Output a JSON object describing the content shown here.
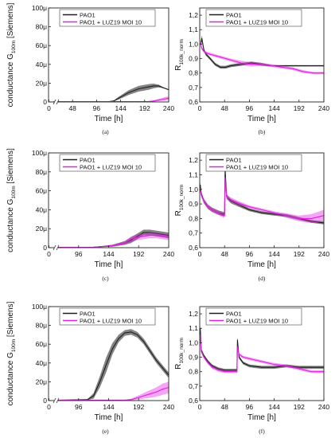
{
  "legend": [
    "PAO1",
    "PAO1 + LUZ19 MOI 10"
  ],
  "chart_data": [
    {
      "panel": "(a)",
      "type": "line",
      "xlabel": "Time [h]",
      "ylabel": "conductance G",
      "ylabel_sub": "100m",
      "ylabel_unit": "[Siemens]",
      "xticks": [
        "0",
        "48",
        "96",
        "144",
        "192",
        "240"
      ],
      "xlim": [
        0,
        240
      ],
      "x_break": true,
      "yticks": [
        "0",
        "20μ",
        "40μ",
        "60μ",
        "80μ",
        "100μ"
      ],
      "ylim": [
        0,
        100
      ],
      "series": [
        {
          "name": "PAO1",
          "color": "#1e1e1e",
          "x": [
            10,
            120,
            130,
            140,
            160,
            180,
            200,
            210,
            220,
            230,
            240
          ],
          "y": [
            0.3,
            0.3,
            1,
            4,
            10,
            14,
            16,
            17,
            17,
            15,
            13
          ],
          "err": [
            0,
            0,
            0.5,
            1.5,
            2.5,
            3,
            3,
            2.5,
            1.5,
            0.5,
            0.3
          ]
        },
        {
          "name": "PAO1 + LUZ19 MOI 10",
          "color": "#e020e0",
          "x": [
            10,
            180,
            200,
            210,
            220,
            230,
            240
          ],
          "y": [
            0.3,
            0.3,
            0.5,
            1,
            2,
            3,
            4
          ],
          "err": [
            0,
            0,
            0.3,
            0.7,
            1.2,
            1.8,
            2
          ]
        }
      ]
    },
    {
      "panel": "(b)",
      "type": "line",
      "xlabel": "Time [h]",
      "ylabel": "R",
      "ylabel_sub": "100k_norm",
      "ylabel_unit": "",
      "xticks": [
        "0",
        "48",
        "96",
        "144",
        "192",
        "240"
      ],
      "xlim": [
        0,
        240
      ],
      "yticks": [
        "0,6",
        "0,7",
        "0,8",
        "0,9",
        "1,0",
        "1,1",
        "1,2"
      ],
      "ylim": [
        0.6,
        1.25
      ],
      "series": [
        {
          "name": "PAO1",
          "color": "#1e1e1e",
          "x": [
            2,
            4,
            8,
            12,
            20,
            30,
            40,
            50,
            60,
            80,
            100,
            120,
            140,
            160,
            200,
            240
          ],
          "y": [
            1.0,
            1.04,
            0.96,
            0.93,
            0.9,
            0.86,
            0.84,
            0.84,
            0.85,
            0.86,
            0.87,
            0.86,
            0.85,
            0.85,
            0.85,
            0.85
          ],
          "err": [
            0.02,
            0.02,
            0.01,
            0.01,
            0.01,
            0.01,
            0.01,
            0.01,
            0.01,
            0.01,
            0.01,
            0.01,
            0.005,
            0.005,
            0.005,
            0.005
          ]
        },
        {
          "name": "PAO1 + LUZ19 MOI 10",
          "color": "#e020e0",
          "x": [
            2,
            4,
            8,
            12,
            20,
            30,
            40,
            60,
            80,
            100,
            120,
            140,
            160,
            180,
            200,
            220,
            240
          ],
          "y": [
            1.0,
            0.97,
            0.95,
            0.94,
            0.93,
            0.92,
            0.91,
            0.89,
            0.87,
            0.86,
            0.86,
            0.85,
            0.84,
            0.83,
            0.81,
            0.8,
            0.8
          ],
          "err": [
            0.02,
            0.01,
            0.01,
            0.01,
            0.01,
            0.01,
            0.01,
            0.01,
            0.015,
            0.015,
            0.01,
            0.01,
            0.01,
            0.01,
            0.01,
            0.008,
            0.008
          ]
        }
      ]
    },
    {
      "panel": "(c)",
      "type": "line",
      "xlabel": "Time [h]",
      "ylabel": "conductance G",
      "ylabel_sub": "100m",
      "ylabel_unit": "[Siemens]",
      "xticks": [
        "0",
        "96",
        "144",
        "192",
        "240"
      ],
      "xlim": [
        48,
        240
      ],
      "x_break": true,
      "yticks": [
        "0",
        "20μ",
        "40μ",
        "60μ",
        "80μ",
        "100μ"
      ],
      "ylim": [
        0,
        100
      ],
      "series": [
        {
          "name": "PAO1",
          "color": "#1e1e1e",
          "x": [
            60,
            120,
            150,
            170,
            180,
            190,
            200,
            210,
            220,
            230,
            240
          ],
          "y": [
            0.3,
            0.5,
            2,
            5,
            8,
            12,
            16,
            16,
            15,
            14,
            13
          ],
          "err": [
            0,
            0.2,
            1,
            2,
            3,
            3,
            3,
            3,
            3,
            3,
            3
          ]
        },
        {
          "name": "PAO1 + LUZ19 MOI 10",
          "color": "#e020e0",
          "x": [
            60,
            120,
            150,
            170,
            180,
            190,
            200,
            210,
            220,
            230,
            240
          ],
          "y": [
            0.3,
            0.5,
            2,
            5,
            9,
            11,
            12,
            13,
            13,
            12,
            11
          ],
          "err": [
            0,
            0.2,
            1,
            2,
            3,
            3,
            3,
            3,
            3,
            3,
            3
          ]
        }
      ]
    },
    {
      "panel": "(d)",
      "type": "line",
      "xlabel": "Time [h]",
      "ylabel": "R",
      "ylabel_sub": "100k_norm",
      "ylabel_unit": "",
      "xticks": [
        "0",
        "48",
        "96",
        "144",
        "192",
        "240"
      ],
      "xlim": [
        0,
        240
      ],
      "yticks": [
        "0,6",
        "0,7",
        "0,8",
        "0,9",
        "1,0",
        "1,1",
        "1,2"
      ],
      "ylim": [
        0.6,
        1.25
      ],
      "series": [
        {
          "name": "PAO1",
          "color": "#1e1e1e",
          "x": [
            1,
            3,
            8,
            16,
            24,
            36,
            46,
            48,
            49,
            52,
            60,
            72,
            96,
            120,
            144,
            168,
            192,
            216,
            240
          ],
          "y": [
            1.03,
            0.97,
            0.92,
            0.88,
            0.86,
            0.84,
            0.83,
            0.83,
            1.14,
            0.95,
            0.92,
            0.9,
            0.86,
            0.84,
            0.83,
            0.82,
            0.8,
            0.78,
            0.77
          ],
          "err": [
            0.02,
            0.015,
            0.015,
            0.015,
            0.015,
            0.015,
            0.015,
            0.015,
            0.02,
            0.015,
            0.015,
            0.015,
            0.01,
            0.01,
            0.01,
            0.01,
            0.01,
            0.01,
            0.01
          ]
        },
        {
          "name": "PAO1 + LUZ19 MOI 10",
          "color": "#e020e0",
          "x": [
            1,
            3,
            8,
            16,
            24,
            36,
            46,
            48,
            49,
            52,
            60,
            72,
            96,
            120,
            144,
            168,
            192,
            216,
            240
          ],
          "y": [
            1.0,
            0.96,
            0.92,
            0.88,
            0.86,
            0.84,
            0.82,
            0.82,
            1.08,
            0.95,
            0.93,
            0.91,
            0.88,
            0.86,
            0.84,
            0.82,
            0.8,
            0.8,
            0.82
          ],
          "err": [
            0.015,
            0.015,
            0.015,
            0.015,
            0.015,
            0.015,
            0.015,
            0.015,
            0.02,
            0.015,
            0.015,
            0.015,
            0.01,
            0.01,
            0.01,
            0.015,
            0.02,
            0.03,
            0.04
          ]
        }
      ]
    },
    {
      "panel": "(e)",
      "type": "line",
      "xlabel": "Time [h]",
      "ylabel": "conductance G",
      "ylabel_sub": "100m",
      "ylabel_unit": "[Siemens]",
      "xticks": [
        "0",
        "96",
        "144",
        "192",
        "240"
      ],
      "xlim": [
        48,
        240
      ],
      "x_break": true,
      "yticks": [
        "0",
        "20μ",
        "40μ",
        "60μ",
        "80μ",
        "100μ"
      ],
      "ylim": [
        0,
        100
      ],
      "series": [
        {
          "name": "PAO1",
          "color": "#1e1e1e",
          "x": [
            60,
            110,
            120,
            130,
            140,
            150,
            160,
            170,
            180,
            190,
            200,
            210,
            220,
            230,
            240
          ],
          "y": [
            0.3,
            1,
            5,
            20,
            38,
            55,
            66,
            72,
            73,
            70,
            63,
            53,
            43,
            35,
            27
          ],
          "err": [
            0,
            0.5,
            3,
            6,
            8,
            6,
            4,
            3,
            3,
            3,
            3,
            3,
            3,
            3,
            3
          ]
        },
        {
          "name": "PAO1 + LUZ19 MOI 10",
          "color": "#e020e0",
          "x": [
            60,
            170,
            180,
            190,
            200,
            210,
            220,
            230,
            240
          ],
          "y": [
            0.3,
            0.5,
            1,
            3,
            5,
            7,
            9,
            12,
            14
          ],
          "err": [
            0,
            0.3,
            1,
            2,
            3,
            4,
            5,
            6,
            6
          ]
        }
      ]
    },
    {
      "panel": "(f)",
      "type": "line",
      "xlabel": "Time [h]",
      "ylabel": "R",
      "ylabel_sub": "100k_norm",
      "ylabel_unit": "",
      "xticks": [
        "0",
        "48",
        "96",
        "144",
        "192",
        "240"
      ],
      "xlim": [
        0,
        240
      ],
      "yticks": [
        "0,6",
        "0,7",
        "0,8",
        "0,9",
        "1,0",
        "1,1",
        "1,2"
      ],
      "ylim": [
        0.6,
        1.25
      ],
      "series": [
        {
          "name": "PAO1",
          "color": "#1e1e1e",
          "x": [
            1,
            3,
            8,
            16,
            24,
            36,
            48,
            60,
            70,
            72,
            73,
            76,
            84,
            96,
            120,
            144,
            168,
            192,
            216,
            240
          ],
          "y": [
            1.1,
            0.95,
            0.91,
            0.87,
            0.84,
            0.82,
            0.81,
            0.81,
            0.81,
            0.81,
            1.02,
            0.9,
            0.86,
            0.84,
            0.83,
            0.83,
            0.84,
            0.83,
            0.83,
            0.83
          ],
          "err": [
            0.02,
            0.01,
            0.01,
            0.01,
            0.01,
            0.01,
            0.01,
            0.01,
            0.01,
            0.01,
            0.02,
            0.01,
            0.01,
            0.01,
            0.01,
            0.01,
            0.01,
            0.01,
            0.01,
            0.01
          ]
        },
        {
          "name": "PAO1 + LUZ19 MOI 10",
          "color": "#e020e0",
          "x": [
            1,
            3,
            8,
            16,
            24,
            36,
            48,
            60,
            70,
            72,
            73,
            76,
            84,
            96,
            120,
            144,
            168,
            192,
            216,
            240
          ],
          "y": [
            1.05,
            0.94,
            0.9,
            0.86,
            0.83,
            0.81,
            0.8,
            0.8,
            0.8,
            0.8,
            0.97,
            0.92,
            0.9,
            0.89,
            0.87,
            0.85,
            0.84,
            0.82,
            0.8,
            0.8
          ],
          "err": [
            0.02,
            0.01,
            0.01,
            0.01,
            0.01,
            0.01,
            0.01,
            0.01,
            0.01,
            0.01,
            0.02,
            0.01,
            0.01,
            0.01,
            0.01,
            0.01,
            0.01,
            0.01,
            0.01,
            0.01
          ]
        }
      ]
    }
  ]
}
